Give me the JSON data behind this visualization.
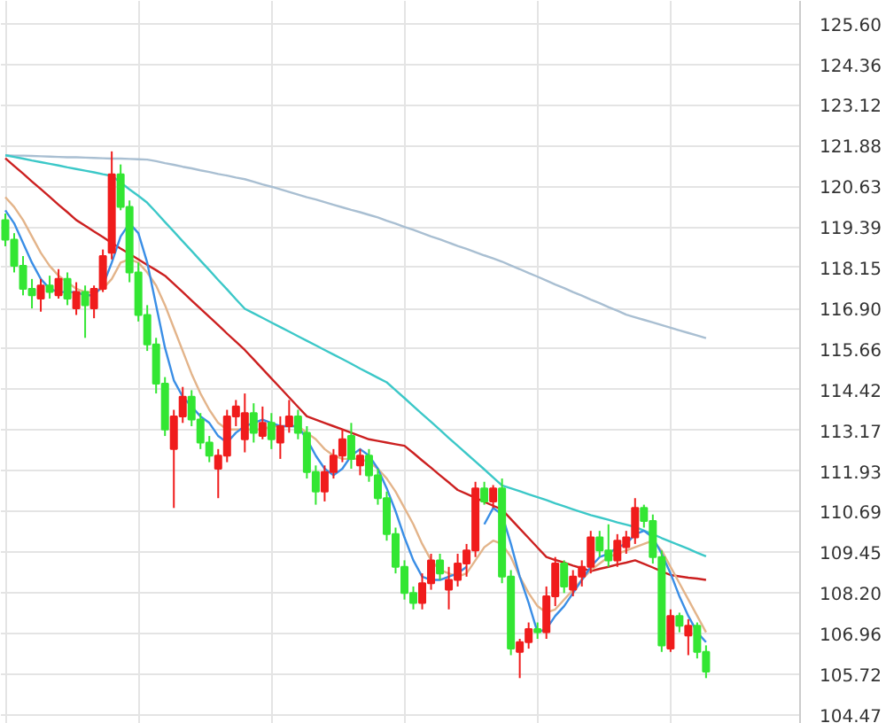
{
  "chart_data": {
    "type": "candlestick",
    "categories": [
      null,
      null,
      null,
      null,
      null,
      null,
      null,
      null,
      null,
      null,
      null,
      null,
      null,
      null,
      null,
      null,
      null,
      null,
      null,
      null,
      null,
      null,
      null,
      null,
      null,
      null,
      null,
      null,
      null,
      null,
      null,
      null,
      null,
      null,
      null,
      null,
      null,
      null,
      null,
      null,
      null,
      null,
      null,
      null,
      null,
      null,
      null,
      null,
      null,
      null,
      null,
      null,
      null,
      null,
      null,
      null,
      null,
      null,
      null,
      null,
      null,
      null,
      null,
      null,
      null,
      null,
      null,
      null,
      null,
      null,
      null,
      null,
      null,
      null,
      null,
      null,
      null,
      null,
      null,
      null
    ],
    "ohlc": [
      [
        119.6,
        119.8,
        118.8,
        119.0
      ],
      [
        119.0,
        119.2,
        118.0,
        118.2
      ],
      [
        118.2,
        118.5,
        117.3,
        117.5
      ],
      [
        117.5,
        117.8,
        116.9,
        117.3
      ],
      [
        117.2,
        117.8,
        116.8,
        117.6
      ],
      [
        117.6,
        117.9,
        117.2,
        117.4
      ],
      [
        117.3,
        118.1,
        117.2,
        117.8
      ],
      [
        117.8,
        118.0,
        117.0,
        117.2
      ],
      [
        116.9,
        117.7,
        116.7,
        117.4
      ],
      [
        117.4,
        117.6,
        116.0,
        117.0
      ],
      [
        116.9,
        117.6,
        116.6,
        117.5
      ],
      [
        117.5,
        118.7,
        117.4,
        118.5
      ],
      [
        118.6,
        121.7,
        118.4,
        121.0
      ],
      [
        121.0,
        121.3,
        119.9,
        120.0
      ],
      [
        120.0,
        120.2,
        117.7,
        118.0
      ],
      [
        118.0,
        118.3,
        116.5,
        116.7
      ],
      [
        116.7,
        117.0,
        115.6,
        115.8
      ],
      [
        115.8,
        116.0,
        114.3,
        114.6
      ],
      [
        114.6,
        114.8,
        113.0,
        113.2
      ],
      [
        112.6,
        113.8,
        110.8,
        113.6
      ],
      [
        113.6,
        114.5,
        113.4,
        114.2
      ],
      [
        114.2,
        114.4,
        113.3,
        113.5
      ],
      [
        113.5,
        113.7,
        112.6,
        112.8
      ],
      [
        112.8,
        113.0,
        112.2,
        112.4
      ],
      [
        112.0,
        112.6,
        111.1,
        112.4
      ],
      [
        112.4,
        113.8,
        112.2,
        113.6
      ],
      [
        113.6,
        114.1,
        113.3,
        113.9
      ],
      [
        112.9,
        114.3,
        112.5,
        113.7
      ],
      [
        113.7,
        114.0,
        112.8,
        113.1
      ],
      [
        113.0,
        113.9,
        112.9,
        113.4
      ],
      [
        113.4,
        113.7,
        112.6,
        112.9
      ],
      [
        112.8,
        113.6,
        112.3,
        113.3
      ],
      [
        113.3,
        114.1,
        113.1,
        113.6
      ],
      [
        113.6,
        113.8,
        112.9,
        113.1
      ],
      [
        113.1,
        113.3,
        111.7,
        111.9
      ],
      [
        111.9,
        112.1,
        110.9,
        111.3
      ],
      [
        111.3,
        112.1,
        111.0,
        111.9
      ],
      [
        111.9,
        112.6,
        111.7,
        112.4
      ],
      [
        112.4,
        113.2,
        112.2,
        112.9
      ],
      [
        113.0,
        113.4,
        112.0,
        112.3
      ],
      [
        112.1,
        112.6,
        111.8,
        112.4
      ],
      [
        112.4,
        112.6,
        111.6,
        111.8
      ],
      [
        111.8,
        112.0,
        110.9,
        111.1
      ],
      [
        111.1,
        111.3,
        109.8,
        110.0
      ],
      [
        110.0,
        110.2,
        108.8,
        109.0
      ],
      [
        109.0,
        109.2,
        108.0,
        108.2
      ],
      [
        108.2,
        108.4,
        107.7,
        107.9
      ],
      [
        107.9,
        108.8,
        107.7,
        108.5
      ],
      [
        108.5,
        109.4,
        108.3,
        109.2
      ],
      [
        109.2,
        109.4,
        108.6,
        108.8
      ],
      [
        108.3,
        109.0,
        107.7,
        108.6
      ],
      [
        108.6,
        109.4,
        108.4,
        109.1
      ],
      [
        109.1,
        109.7,
        108.7,
        109.5
      ],
      [
        109.5,
        111.6,
        109.3,
        111.4
      ],
      [
        111.4,
        111.6,
        110.9,
        111.0
      ],
      [
        111.0,
        111.5,
        110.8,
        111.4
      ],
      [
        111.4,
        111.7,
        108.5,
        108.7
      ],
      [
        108.7,
        108.9,
        106.3,
        106.5
      ],
      [
        106.4,
        106.8,
        105.6,
        106.7
      ],
      [
        106.7,
        107.3,
        106.5,
        107.1
      ],
      [
        107.1,
        107.3,
        106.8,
        107.0
      ],
      [
        107.0,
        108.4,
        106.8,
        108.1
      ],
      [
        108.1,
        109.3,
        107.8,
        109.1
      ],
      [
        109.1,
        109.2,
        108.2,
        108.4
      ],
      [
        108.3,
        108.9,
        108.1,
        108.7
      ],
      [
        108.7,
        109.2,
        108.4,
        109.0
      ],
      [
        109.0,
        110.1,
        108.8,
        109.9
      ],
      [
        109.9,
        110.1,
        109.3,
        109.5
      ],
      [
        109.5,
        110.3,
        109.0,
        109.2
      ],
      [
        109.2,
        110.0,
        109.0,
        109.8
      ],
      [
        109.6,
        110.1,
        109.4,
        109.9
      ],
      [
        109.9,
        111.1,
        109.7,
        110.8
      ],
      [
        110.8,
        110.9,
        110.2,
        110.4
      ],
      [
        110.4,
        110.6,
        109.1,
        109.3
      ],
      [
        109.3,
        109.5,
        106.4,
        106.6
      ],
      [
        106.5,
        107.7,
        106.4,
        107.5
      ],
      [
        107.5,
        107.6,
        107.0,
        107.2
      ],
      [
        106.9,
        107.4,
        106.3,
        107.2
      ],
      [
        107.2,
        107.3,
        106.2,
        106.4
      ],
      [
        106.4,
        106.6,
        105.6,
        105.8
      ]
    ],
    "colors": [
      "#33e633",
      "#33e633",
      "#33e633",
      "#33e633",
      "#f01c1c",
      "#33e633",
      "#f01c1c",
      "#33e633",
      "#f01c1c",
      "#33e633",
      "#f01c1c",
      "#f01c1c",
      "#f01c1c",
      "#33e633",
      "#33e633",
      "#33e633",
      "#33e633",
      "#33e633",
      "#33e633",
      "#f01c1c",
      "#f01c1c",
      "#33e633",
      "#33e633",
      "#33e633",
      "#f01c1c",
      "#f01c1c",
      "#f01c1c",
      "#f01c1c",
      "#33e633",
      "#f01c1c",
      "#33e633",
      "#f01c1c",
      "#f01c1c",
      "#33e633",
      "#33e633",
      "#33e633",
      "#f01c1c",
      "#f01c1c",
      "#f01c1c",
      "#33e633",
      "#f01c1c",
      "#33e633",
      "#33e633",
      "#33e633",
      "#33e633",
      "#33e633",
      "#33e633",
      "#f01c1c",
      "#f01c1c",
      "#33e633",
      "#f01c1c",
      "#f01c1c",
      "#f01c1c",
      "#f01c1c",
      "#33e633",
      "#f01c1c",
      "#33e633",
      "#33e633",
      "#f01c1c",
      "#f01c1c",
      "#33e633",
      "#f01c1c",
      "#f01c1c",
      "#33e633",
      "#f01c1c",
      "#f01c1c",
      "#f01c1c",
      "#33e633",
      "#33e633",
      "#f01c1c",
      "#f01c1c",
      "#f01c1c",
      "#33e633",
      "#33e633",
      "#33e633",
      "#f01c1c",
      "#33e633",
      "#f01c1c",
      "#33e633",
      "#33e633"
    ],
    "series": [
      {
        "type": "line",
        "color": "#a9bfd2",
        "values": [
          121.58,
          121.57,
          121.57,
          121.56,
          121.55,
          121.54,
          121.53,
          121.52,
          121.52,
          121.51,
          121.5,
          121.49,
          121.48,
          121.48,
          121.47,
          121.46,
          121.45,
          121.4,
          121.34,
          121.29,
          121.23,
          121.18,
          121.12,
          121.07,
          121.01,
          120.96,
          120.9,
          120.85,
          120.77,
          120.69,
          120.62,
          120.54,
          120.46,
          120.38,
          120.3,
          120.23,
          120.15,
          120.07,
          119.99,
          119.91,
          119.84,
          119.76,
          119.68,
          119.58,
          119.49,
          119.39,
          119.3,
          119.2,
          119.1,
          119.01,
          118.91,
          118.81,
          118.72,
          118.62,
          118.52,
          118.43,
          118.33,
          118.21,
          118.1,
          117.98,
          117.87,
          117.75,
          117.63,
          117.52,
          117.4,
          117.29,
          117.17,
          117.06,
          116.94,
          116.83,
          116.71,
          116.63,
          116.55,
          116.47,
          116.39,
          116.31,
          116.23,
          116.15,
          116.07,
          115.99
        ]
      },
      {
        "type": "line",
        "color": "#3cc8c8",
        "values": [
          121.58,
          121.53,
          121.48,
          121.42,
          121.37,
          121.32,
          121.27,
          121.21,
          121.16,
          121.11,
          121.06,
          121.0,
          120.95,
          120.75,
          120.54,
          120.34,
          120.13,
          119.84,
          119.54,
          119.25,
          118.95,
          118.66,
          118.36,
          118.07,
          117.77,
          117.48,
          117.18,
          116.89,
          116.75,
          116.61,
          116.47,
          116.33,
          116.19,
          116.05,
          115.91,
          115.77,
          115.63,
          115.49,
          115.35,
          115.21,
          115.06,
          114.92,
          114.78,
          114.64,
          114.4,
          114.16,
          113.91,
          113.67,
          113.43,
          113.19,
          112.94,
          112.7,
          112.46,
          112.22,
          111.98,
          111.73,
          111.49,
          111.4,
          111.31,
          111.22,
          111.13,
          111.04,
          110.94,
          110.85,
          110.76,
          110.67,
          110.58,
          110.51,
          110.44,
          110.36,
          110.29,
          110.22,
          110.11,
          110.0,
          109.88,
          109.77,
          109.66,
          109.55,
          109.43,
          109.32
        ]
      },
      {
        "type": "line",
        "color": "#cc2020",
        "values": [
          121.49,
          121.25,
          121.02,
          120.78,
          120.55,
          120.31,
          120.07,
          119.84,
          119.6,
          119.43,
          119.25,
          119.08,
          118.9,
          118.73,
          118.57,
          118.4,
          118.23,
          118.07,
          117.9,
          117.65,
          117.4,
          117.14,
          116.89,
          116.64,
          116.39,
          116.13,
          115.88,
          115.63,
          115.34,
          115.05,
          114.76,
          114.47,
          114.18,
          113.89,
          113.6,
          113.5,
          113.4,
          113.3,
          113.2,
          113.1,
          113.0,
          112.9,
          112.85,
          112.8,
          112.75,
          112.7,
          112.48,
          112.25,
          112.03,
          111.8,
          111.58,
          111.35,
          111.23,
          111.11,
          110.99,
          110.87,
          110.75,
          110.46,
          110.17,
          109.88,
          109.59,
          109.3,
          109.21,
          109.13,
          109.04,
          108.96,
          108.87,
          108.94,
          109.0,
          109.07,
          109.13,
          109.2,
          109.09,
          108.98,
          108.86,
          108.75,
          108.71,
          108.67,
          108.64,
          108.6
        ]
      },
      {
        "type": "line",
        "color": "#e3b48a",
        "values": [
          120.3,
          120.0,
          119.6,
          119.1,
          118.6,
          118.2,
          117.9,
          117.7,
          117.5,
          117.4,
          117.4,
          117.5,
          117.8,
          118.3,
          118.4,
          118.3,
          118.0,
          117.6,
          117.0,
          116.3,
          115.6,
          114.9,
          114.3,
          113.8,
          113.4,
          113.2,
          113.2,
          113.2,
          113.2,
          113.2,
          113.3,
          113.3,
          113.3,
          113.3,
          113.1,
          112.9,
          112.6,
          112.4,
          112.3,
          112.3,
          112.3,
          112.2,
          112.0,
          111.7,
          111.3,
          110.8,
          110.3,
          109.7,
          109.2,
          108.9,
          108.8,
          108.7,
          108.8,
          109.2,
          109.6,
          109.8,
          109.7,
          109.3,
          108.7,
          108.2,
          107.8,
          107.6,
          107.7,
          108.0,
          108.3,
          108.6,
          108.9,
          109.1,
          109.3,
          109.4,
          109.5,
          109.6,
          109.7,
          109.8,
          109.5,
          109.0,
          108.5,
          108.0,
          107.5,
          107.0
        ]
      },
      {
        "type": "line",
        "color": "#3a8ee6",
        "values": [
          119.9,
          119.5,
          118.9,
          118.3,
          117.8,
          117.5,
          117.4,
          117.4,
          117.4,
          117.3,
          117.3,
          117.6,
          118.3,
          119.1,
          119.5,
          119.2,
          118.3,
          117.0,
          115.7,
          114.7,
          114.2,
          113.9,
          113.6,
          113.4,
          113.0,
          112.8,
          113.1,
          113.3,
          113.4,
          113.5,
          113.4,
          113.3,
          113.3,
          113.3,
          112.9,
          112.4,
          112.0,
          111.8,
          112.0,
          112.4,
          112.6,
          112.4,
          112.0,
          111.4,
          110.7,
          109.9,
          109.2,
          108.7,
          108.6,
          108.6,
          108.7,
          108.8,
          109.0,
          null,
          110.3,
          110.8,
          110.6,
          109.7,
          108.7,
          107.9,
          107.0,
          107.1,
          107.5,
          107.8,
          108.2,
          108.6,
          109.0,
          109.3,
          109.4,
          109.6,
          109.7,
          110.0,
          110.1,
          109.9,
          109.4,
          108.8,
          108.1,
          107.5,
          107.0,
          106.7
        ]
      }
    ],
    "ylim": [
      104.2,
      126.3
    ],
    "yticks": [
      {
        "value": 125.6,
        "label": "125.60"
      },
      124.36,
      123.12,
      121.88,
      120.63,
      119.39,
      118.15,
      {
        "value": 116.9,
        "label": "116.90"
      },
      115.66,
      114.42,
      113.17,
      111.93,
      110.69,
      109.45,
      {
        "value": 108.2,
        "label": "108.20"
      },
      106.96,
      105.72,
      104.47
    ],
    "tick_labels": "y",
    "grid": true
  }
}
